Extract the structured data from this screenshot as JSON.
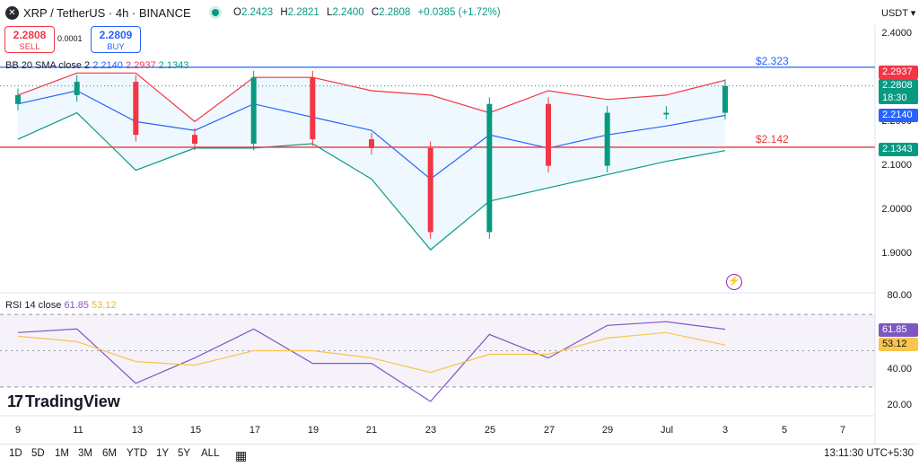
{
  "header": {
    "symbol_icon": "xrp-icon",
    "title": "XRP / TetherUS · 4h · BINANCE",
    "ohlc": {
      "o_label": "O",
      "o": "2.2423",
      "h_label": "H",
      "h": "2.2821",
      "l_label": "L",
      "l": "2.2400",
      "c_label": "C",
      "c": "2.2808",
      "change": "+0.0385 (+1.72%)"
    },
    "currency": "USDT ▾",
    "status_color": "#089981"
  },
  "trade": {
    "sell_price": "2.2808",
    "sell_label": "SELL",
    "spread": "0.0001",
    "buy_price": "2.2809",
    "buy_label": "BUY"
  },
  "indicators": {
    "bb": {
      "name": "BB 20 SMA close 2",
      "basis": "2.2140",
      "upper": "2.2937",
      "lower": "2.1343"
    },
    "rsi": {
      "name": "RSI 14 close",
      "rsi": "61.85",
      "ma": "53.12"
    }
  },
  "price_axis": {
    "ticks": [
      "2.4000",
      "2.2000",
      "2.1000",
      "2.0000",
      "1.9000"
    ]
  },
  "rsi_axis": {
    "ticks": [
      "80.00",
      "40.00",
      "20.00"
    ]
  },
  "tags": {
    "upper": "2.2937",
    "last": "2.2808",
    "countdown": "18:30",
    "basis": "2.2140",
    "lower": "2.1343",
    "rsi": "61.85",
    "rsi_ma": "53.12"
  },
  "levels": {
    "resistance": "$2.323",
    "support": "$2.142"
  },
  "x_axis": {
    "labels": [
      "9",
      "11",
      "13",
      "15",
      "17",
      "19",
      "21",
      "23",
      "25",
      "27",
      "29",
      "Jul",
      "3",
      "5",
      "7"
    ]
  },
  "branding": {
    "logo_text": "TradingView"
  },
  "bottom_bar": {
    "ranges": [
      "1D",
      "5D",
      "1M",
      "3M",
      "6M",
      "YTD",
      "1Y",
      "5Y",
      "ALL"
    ],
    "clock": "13:11:30 UTC+5:30"
  },
  "colors": {
    "up": "#089981",
    "down": "#f23645",
    "basis": "#2962ff",
    "upper": "#f23645",
    "lower": "#089981",
    "rsi": "#7e57c2",
    "rsi_ma": "#f7c64a",
    "resistance": "#2962ff",
    "support": "#e23b3b"
  },
  "chart_data": [
    {
      "type": "line",
      "title": "XRP / TetherUS · 4h · BINANCE",
      "xlabel": "",
      "ylabel": "",
      "x": [
        "9",
        "11",
        "13",
        "15",
        "17",
        "19",
        "21",
        "23",
        "25",
        "27",
        "29",
        "Jul",
        "3"
      ],
      "ylim": [
        1.85,
        2.43
      ],
      "series": [
        {
          "name": "close",
          "values": [
            2.26,
            2.29,
            2.17,
            2.15,
            2.3,
            2.16,
            2.14,
            1.95,
            2.24,
            2.1,
            2.22,
            2.22,
            2.2808
          ]
        },
        {
          "name": "BB basis",
          "values": [
            2.24,
            2.27,
            2.2,
            2.18,
            2.24,
            2.21,
            2.18,
            2.07,
            2.17,
            2.14,
            2.17,
            2.19,
            2.214
          ]
        },
        {
          "name": "BB upper",
          "values": [
            2.26,
            2.31,
            2.31,
            2.2,
            2.3,
            2.3,
            2.27,
            2.26,
            2.22,
            2.27,
            2.25,
            2.26,
            2.2937
          ]
        },
        {
          "name": "BB lower",
          "values": [
            2.16,
            2.22,
            2.09,
            2.14,
            2.14,
            2.15,
            2.07,
            1.91,
            2.02,
            2.05,
            2.08,
            2.11,
            2.1343
          ]
        }
      ],
      "levels": [
        {
          "label": "$2.323",
          "value": 2.323
        },
        {
          "label": "$2.142",
          "value": 2.142
        }
      ],
      "grid": false,
      "legend": "top-left"
    },
    {
      "type": "line",
      "title": "RSI 14 close",
      "x": [
        "9",
        "11",
        "13",
        "15",
        "17",
        "19",
        "21",
        "23",
        "25",
        "27",
        "29",
        "Jul",
        "3"
      ],
      "ylim": [
        15,
        82
      ],
      "bands": [
        30,
        70
      ],
      "series": [
        {
          "name": "RSI",
          "values": [
            60,
            62,
            32,
            46,
            62,
            43,
            43,
            22,
            59,
            46,
            64,
            66,
            61.85
          ]
        },
        {
          "name": "MA",
          "values": [
            58,
            55,
            44,
            42,
            50,
            50,
            46,
            38,
            48,
            48,
            57,
            60,
            53.12
          ]
        }
      ]
    }
  ]
}
